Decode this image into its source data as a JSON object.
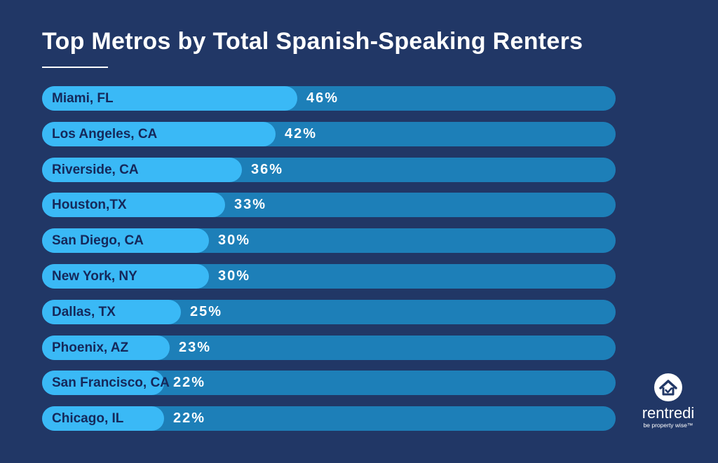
{
  "chart_data": {
    "type": "bar",
    "orientation": "horizontal",
    "title": "Top Metros by Total Spanish-Speaking Renters",
    "categories": [
      "Miami, FL",
      "Los Angeles, CA",
      "Riverside, CA",
      "Houston,TX",
      "San Diego, CA",
      "New York, NY",
      "Dallas, TX",
      "Phoenix, AZ",
      "San Francisco, CA",
      "Chicago, IL"
    ],
    "values": [
      46,
      42,
      36,
      33,
      30,
      30,
      25,
      23,
      22,
      22
    ],
    "value_labels": [
      "46%",
      "42%",
      "36%",
      "33%",
      "30%",
      "30%",
      "25%",
      "23%",
      "22%",
      "22%"
    ],
    "xlim": [
      0,
      100
    ],
    "unit": "%"
  },
  "brand": {
    "name": "rentredi",
    "tagline": "be property wise™",
    "icon": "house-check-icon"
  },
  "colors": {
    "background": "#213766",
    "track": "#1d7fb8",
    "fill": "#3ab9f6",
    "label_text": "#15285a",
    "value_text": "#ffffff"
  }
}
